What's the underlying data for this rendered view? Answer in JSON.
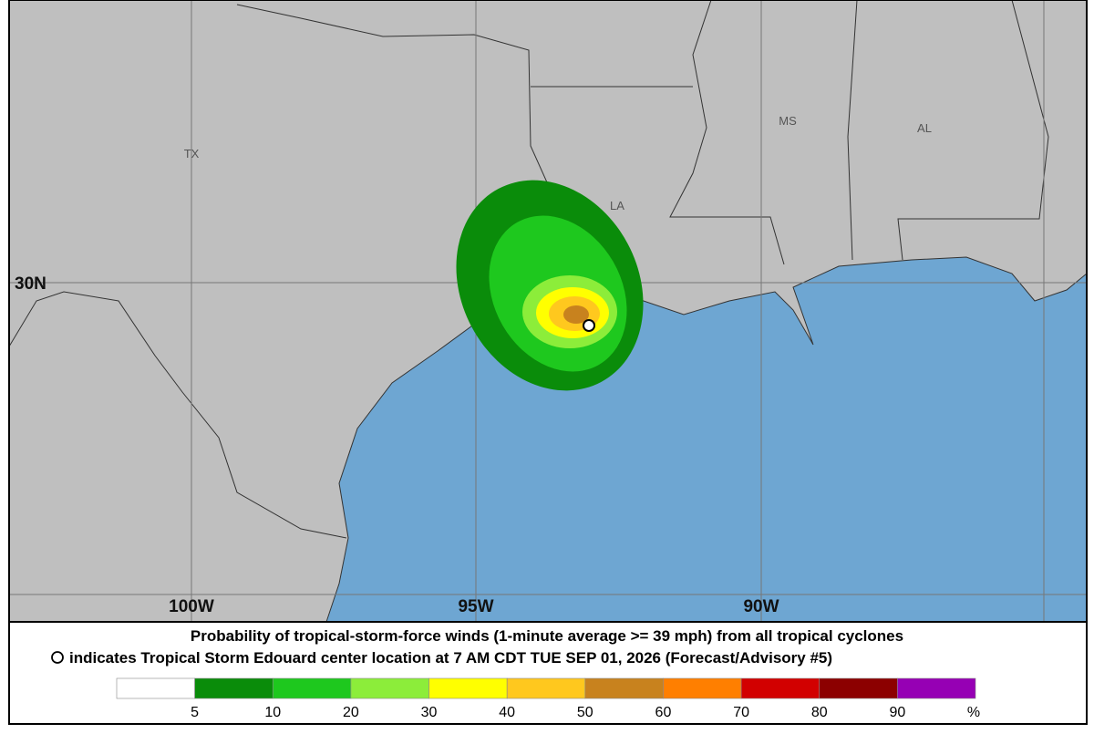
{
  "map": {
    "state_labels": [
      "TX",
      "LA",
      "MS",
      "AL"
    ],
    "lat_labels": [
      "30N"
    ],
    "lon_labels": [
      "100W",
      "95W",
      "90W"
    ]
  },
  "caption": {
    "line1": "Probability of tropical-storm-force winds (1-minute average >= 39 mph) from all tropical cyclones",
    "line2": "indicates Tropical Storm Edouard center location at 7 AM CDT TUE SEP 01, 2026 (Forecast/Advisory #5)"
  },
  "legend": {
    "colors": [
      "#ffffff",
      "#0a8c0a",
      "#1ec81e",
      "#8ced3a",
      "#ffff00",
      "#ffc81e",
      "#c8821e",
      "#ff7f00",
      "#d20000",
      "#8c0000",
      "#9600b4"
    ],
    "labels": [
      5,
      10,
      20,
      30,
      40,
      50,
      60,
      70,
      80,
      90
    ],
    "unit": "%"
  }
}
